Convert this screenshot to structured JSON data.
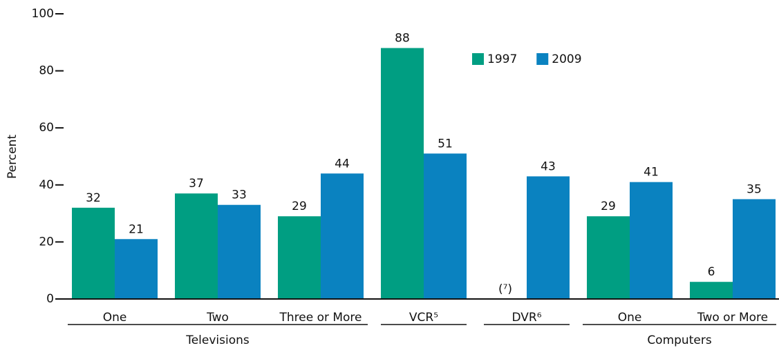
{
  "chart_data": {
    "type": "bar",
    "y_label": "Percent",
    "categories": [
      "One",
      "Two",
      "Three or More",
      "VCR⁵",
      "DVR⁶",
      "One",
      "Two or More"
    ],
    "groups": [
      {
        "label": "Televisions",
        "first": 0,
        "last": 2
      },
      {
        "label": "Computers",
        "first": 5,
        "last": 6
      }
    ],
    "series": [
      {
        "name": "1997",
        "color": "#009e82",
        "values": [
          32,
          37,
          29,
          88,
          null,
          29,
          6
        ],
        "value_labels": [
          "32",
          "37",
          "29",
          "88",
          "(⁷)",
          "29",
          "6"
        ]
      },
      {
        "name": "2009",
        "color": "#0a82c0",
        "values": [
          21,
          33,
          44,
          51,
          43,
          41,
          35
        ]
      }
    ],
    "ylim": [
      0,
      100
    ],
    "yticks": [
      0,
      20,
      40,
      60,
      80,
      100
    ],
    "legend": "top"
  }
}
